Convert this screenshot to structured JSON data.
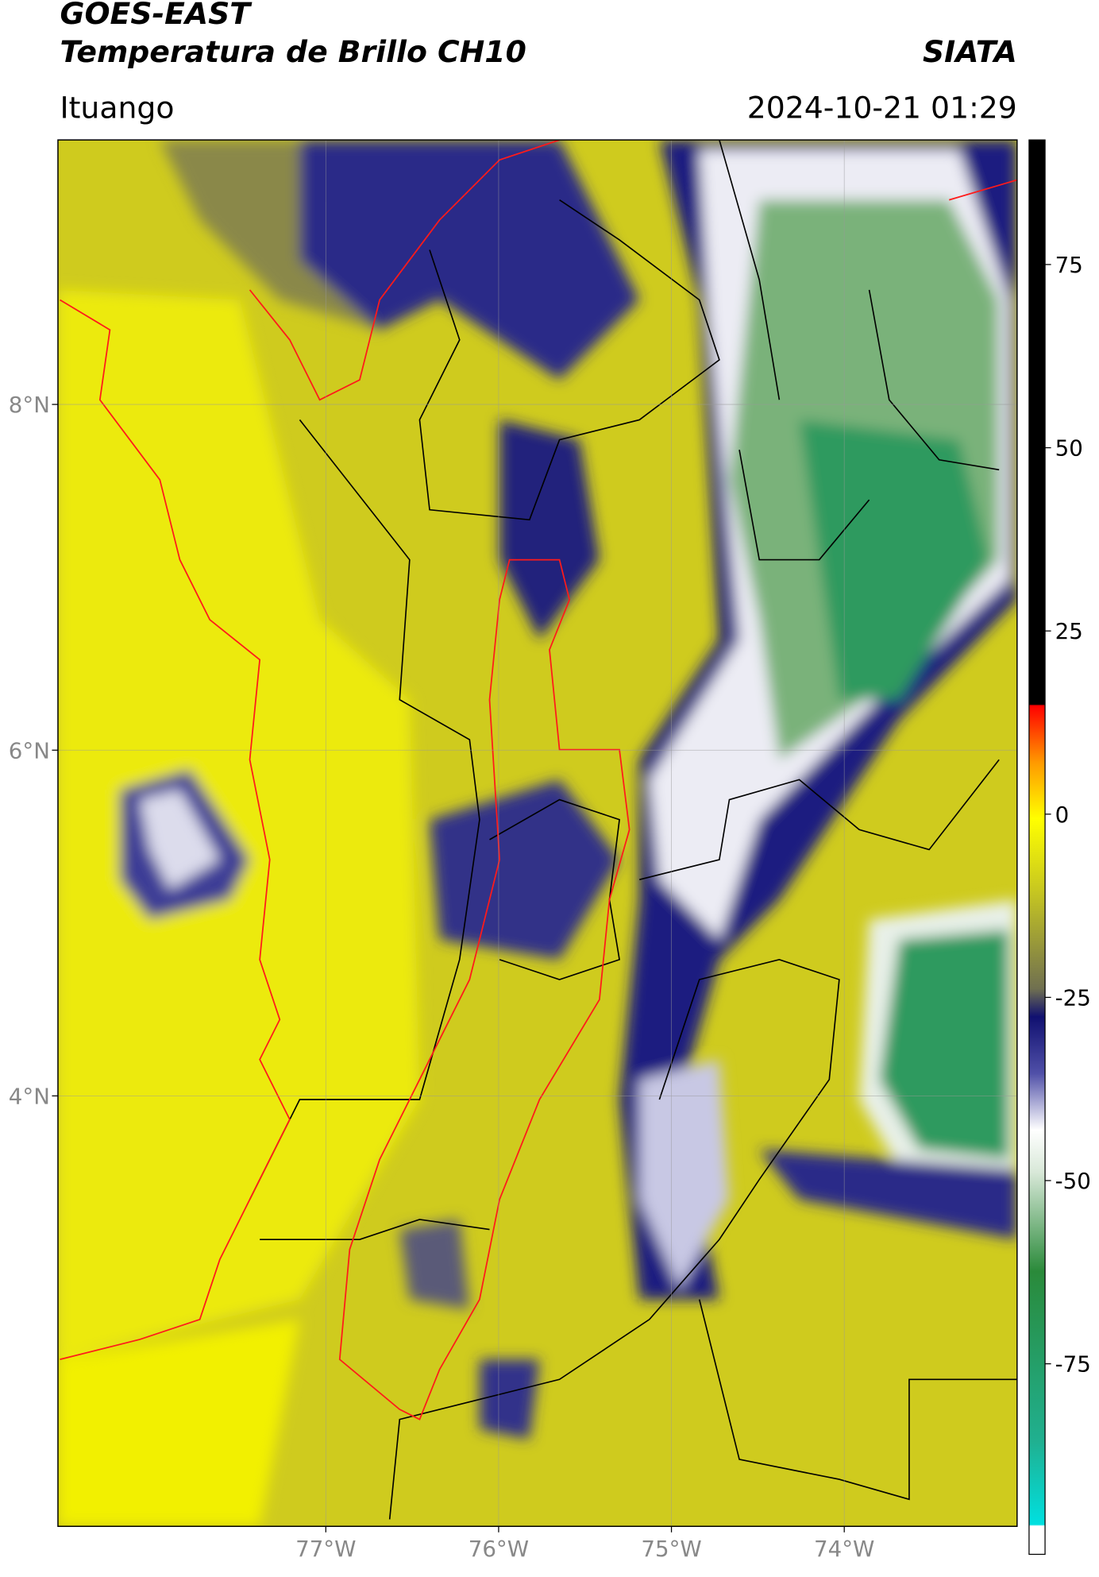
{
  "header": {
    "title": "GOES-EAST",
    "subtitle": "Temperatura de Brillo CH10",
    "source": "SIATA",
    "location": "Ituango",
    "datetime": "2024-10-21 01:29"
  },
  "map": {
    "xlim": [
      -78.55,
      -73.0
    ],
    "ylim": [
      1.51,
      9.53
    ],
    "xticks": [
      {
        "value": -77,
        "label": "77°W"
      },
      {
        "value": -76,
        "label": "76°W"
      },
      {
        "value": -75,
        "label": "75°W"
      },
      {
        "value": -74,
        "label": "74°W"
      }
    ],
    "yticks": [
      {
        "value": 8,
        "label": "8°N"
      },
      {
        "value": 6,
        "label": "6°N"
      },
      {
        "value": 4,
        "label": "4°N"
      }
    ],
    "grid": true
  },
  "colorbar": {
    "clim": [
      -101,
      92
    ],
    "ticks": [
      75,
      50,
      25,
      0,
      -25,
      -50,
      -75
    ]
  }
}
